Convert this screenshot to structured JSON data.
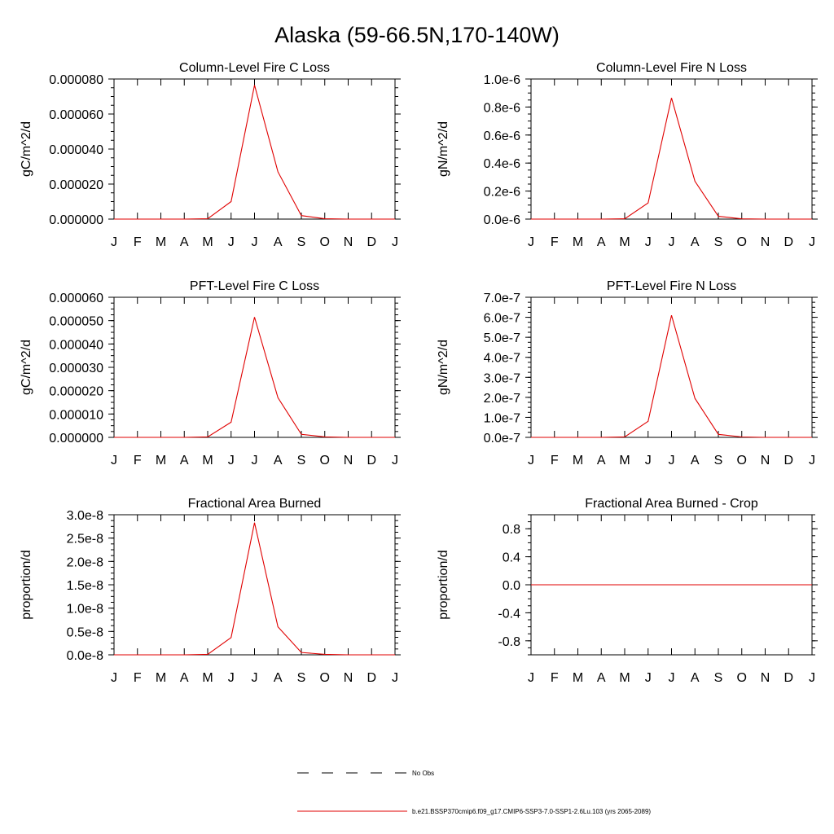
{
  "figure": {
    "title": "Alaska (59-66.5N,170-140W)"
  },
  "legend": {
    "entries": [
      {
        "label": "No Obs",
        "style": "dashed",
        "color": "#000000"
      },
      {
        "label": "b.e21.BSSP370cmip6.f09_g17.CMIP6-SSP3-7.0-SSP1-2.6Lu.103 (yrs 2065-2089)",
        "style": "solid",
        "color": "#e00000"
      }
    ]
  },
  "chart_data": [
    {
      "type": "line",
      "title": "Column-Level Fire C Loss",
      "ylabel": "gC/m^2/d",
      "xlabel": "",
      "categories": [
        "J",
        "F",
        "M",
        "A",
        "M",
        "J",
        "J",
        "A",
        "S",
        "O",
        "N",
        "D",
        "J"
      ],
      "ylim": [
        0,
        8e-05
      ],
      "yticks": [
        0,
        2e-05,
        4e-05,
        6e-05,
        8e-05
      ],
      "ytick_labels": [
        "0.000000",
        "0.000020",
        "0.000040",
        "0.000060",
        "0.000080"
      ],
      "minor_per_major": 4,
      "series": [
        {
          "name": "b.e21.BSSP370cmip6.f09_g17.CMIP6-SSP3-7.0-SSP1-2.6Lu.103 (yrs 2065-2089)",
          "color": "#e00000",
          "values": [
            0,
            0,
            0,
            0,
            2e-07,
            1e-05,
            7.65e-05,
            2.7e-05,
            2e-06,
            2e-07,
            0,
            0,
            0
          ]
        }
      ]
    },
    {
      "type": "line",
      "title": "Column-Level Fire N Loss",
      "ylabel": "gN/m^2/d",
      "xlabel": "",
      "categories": [
        "J",
        "F",
        "M",
        "A",
        "M",
        "J",
        "J",
        "A",
        "S",
        "O",
        "N",
        "D",
        "J"
      ],
      "ylim": [
        0,
        1e-06
      ],
      "yticks": [
        0,
        2e-07,
        4e-07,
        6e-07,
        8e-07,
        1e-06
      ],
      "ytick_labels": [
        "0.0e-6",
        "0.2e-6",
        "0.4e-6",
        "0.6e-6",
        "0.8e-6",
        "1.0e-6"
      ],
      "minor_per_major": 4,
      "series": [
        {
          "name": "b.e21.BSSP370cmip6.f09_g17.CMIP6-SSP3-7.0-SSP1-2.6Lu.103 (yrs 2065-2089)",
          "color": "#e00000",
          "values": [
            0,
            0,
            0,
            0,
            2e-09,
            1.15e-07,
            8.65e-07,
            2.7e-07,
            2e-08,
            2e-09,
            0,
            0,
            0
          ]
        }
      ]
    },
    {
      "type": "line",
      "title": "PFT-Level Fire C Loss",
      "ylabel": "gC/m^2/d",
      "xlabel": "",
      "categories": [
        "J",
        "F",
        "M",
        "A",
        "M",
        "J",
        "J",
        "A",
        "S",
        "O",
        "N",
        "D",
        "J"
      ],
      "ylim": [
        0,
        6e-05
      ],
      "yticks": [
        0,
        1e-05,
        2e-05,
        3e-05,
        4e-05,
        5e-05,
        6e-05
      ],
      "ytick_labels": [
        "0.000000",
        "0.000010",
        "0.000020",
        "0.000030",
        "0.000040",
        "0.000050",
        "0.000060"
      ],
      "minor_per_major": 4,
      "series": [
        {
          "name": "b.e21.BSSP370cmip6.f09_g17.CMIP6-SSP3-7.0-SSP1-2.6Lu.103 (yrs 2065-2089)",
          "color": "#e00000",
          "values": [
            0,
            0,
            0,
            0,
            2e-07,
            6.5e-06,
            5.15e-05,
            1.7e-05,
            1.3e-06,
            2e-07,
            0,
            0,
            0
          ]
        }
      ]
    },
    {
      "type": "line",
      "title": "PFT-Level Fire N Loss",
      "ylabel": "gN/m^2/d",
      "xlabel": "",
      "categories": [
        "J",
        "F",
        "M",
        "A",
        "M",
        "J",
        "J",
        "A",
        "S",
        "O",
        "N",
        "D",
        "J"
      ],
      "ylim": [
        0,
        7e-07
      ],
      "yticks": [
        0,
        1e-07,
        2e-07,
        3e-07,
        4e-07,
        5e-07,
        6e-07,
        7e-07
      ],
      "ytick_labels": [
        "0.0e-7",
        "1.0e-7",
        "2.0e-7",
        "3.0e-7",
        "4.0e-7",
        "5.0e-7",
        "6.0e-7",
        "7.0e-7"
      ],
      "minor_per_major": 4,
      "series": [
        {
          "name": "b.e21.BSSP370cmip6.f09_g17.CMIP6-SSP3-7.0-SSP1-2.6Lu.103 (yrs 2065-2089)",
          "color": "#e00000",
          "values": [
            0,
            0,
            0,
            0,
            2e-09,
            8e-08,
            6.1e-07,
            1.95e-07,
            1.5e-08,
            2e-09,
            0,
            0,
            0
          ]
        }
      ]
    },
    {
      "type": "line",
      "title": "Fractional Area Burned",
      "ylabel": "proportion/d",
      "xlabel": "",
      "categories": [
        "J",
        "F",
        "M",
        "A",
        "M",
        "J",
        "J",
        "A",
        "S",
        "O",
        "N",
        "D",
        "J"
      ],
      "ylim": [
        0,
        3e-08
      ],
      "yticks": [
        0,
        5e-09,
        1e-08,
        1.5e-08,
        2e-08,
        2.5e-08,
        3e-08
      ],
      "ytick_labels": [
        "0.0e-8",
        "0.5e-8",
        "1.0e-8",
        "1.5e-8",
        "2.0e-8",
        "2.5e-8",
        "3.0e-8"
      ],
      "minor_per_major": 4,
      "series": [
        {
          "name": "b.e21.BSSP370cmip6.f09_g17.CMIP6-SSP3-7.0-SSP1-2.6Lu.103 (yrs 2065-2089)",
          "color": "#e00000",
          "values": [
            0,
            0,
            0,
            0,
            1e-10,
            3.7e-09,
            2.83e-08,
            6e-09,
            5e-10,
            1e-10,
            0,
            0,
            0
          ]
        }
      ]
    },
    {
      "type": "line",
      "title": "Fractional Area Burned - Crop",
      "ylabel": "proportion/d",
      "xlabel": "",
      "categories": [
        "J",
        "F",
        "M",
        "A",
        "M",
        "J",
        "J",
        "A",
        "S",
        "O",
        "N",
        "D",
        "J"
      ],
      "ylim": [
        -1,
        1
      ],
      "yticks": [
        -0.8,
        -0.4,
        0,
        0.4,
        0.8
      ],
      "ytick_labels": [
        "-0.8",
        "-0.4",
        "0.0",
        "0.4",
        "0.8"
      ],
      "minor_per_major": 4,
      "series": [
        {
          "name": "b.e21.BSSP370cmip6.f09_g17.CMIP6-SSP3-7.0-SSP1-2.6Lu.103 (yrs 2065-2089)",
          "color": "#e00000",
          "values": [
            0,
            0,
            0,
            0,
            0,
            0,
            0,
            0,
            0,
            0,
            0,
            0,
            0
          ]
        }
      ]
    }
  ]
}
